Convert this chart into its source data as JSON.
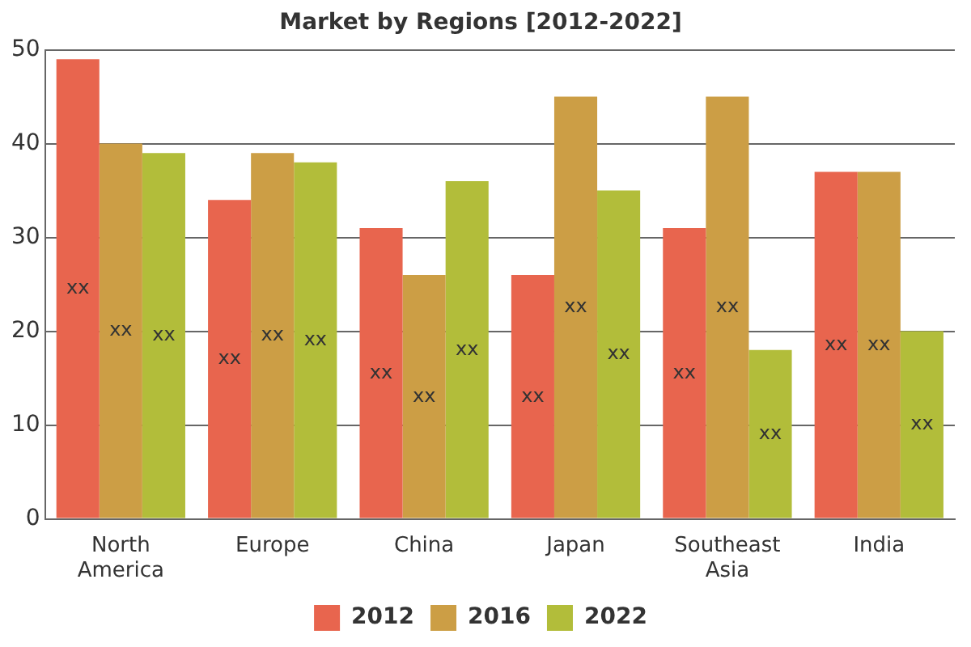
{
  "chart_data": {
    "type": "bar",
    "title": "Market by Regions [2012-2022]",
    "categories": [
      "North America",
      "Europe",
      "China",
      "Japan",
      "Southeast Asia",
      "India"
    ],
    "series": [
      {
        "name": "2012",
        "color": "#e8654e",
        "values": [
          49,
          34,
          31,
          26,
          31,
          37
        ],
        "value_labels": [
          "xx",
          "xx",
          "xx",
          "xx",
          "xx",
          "xx"
        ]
      },
      {
        "name": "2016",
        "color": "#cc9e45",
        "values": [
          40,
          39,
          26,
          45,
          45,
          37
        ],
        "value_labels": [
          "xx",
          "xx",
          "xx",
          "xx",
          "xx",
          "xx"
        ]
      },
      {
        "name": "2022",
        "color": "#b2bd3a",
        "values": [
          39,
          38,
          36,
          35,
          18,
          20
        ],
        "value_labels": [
          "xx",
          "xx",
          "xx",
          "xx",
          "xx",
          "xx"
        ]
      }
    ],
    "ylim": [
      0,
      50
    ],
    "yticks": [
      0,
      10,
      20,
      30,
      40,
      50
    ],
    "grid": "y",
    "legend": "bottom"
  }
}
